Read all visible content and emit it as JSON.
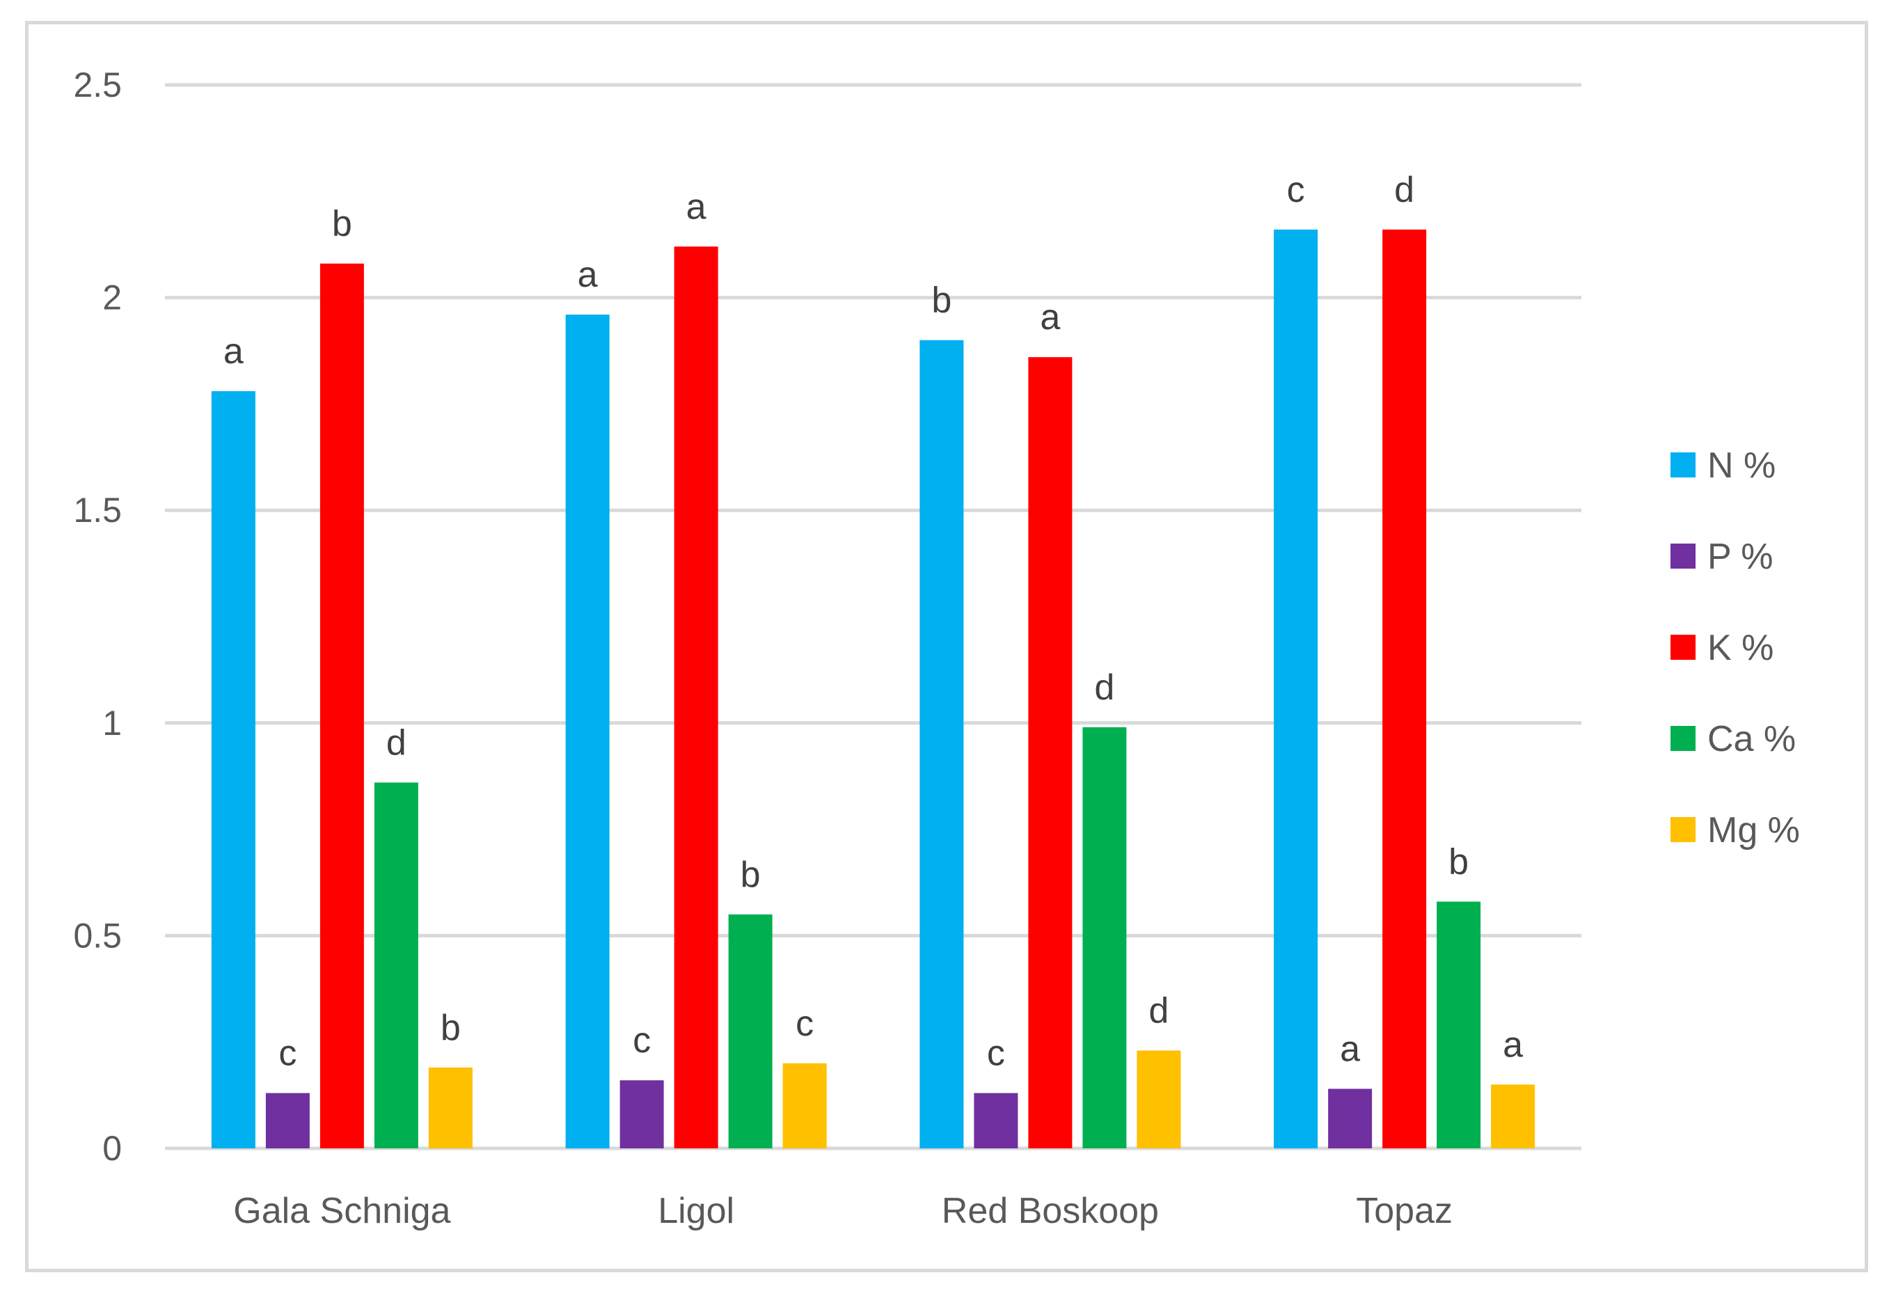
{
  "chart_data": {
    "type": "bar",
    "title": "",
    "xlabel": "",
    "ylabel": "",
    "ylim": [
      0,
      2.5
    ],
    "yticks": [
      0,
      0.5,
      1,
      1.5,
      2,
      2.5
    ],
    "ytick_labels": [
      "0",
      "0.5",
      "1",
      "1.5",
      "2",
      "2.5"
    ],
    "grid": true,
    "legend_position": "right",
    "categories": [
      "Gala Schniga",
      "Ligol",
      "Red Boskoop",
      "Topaz"
    ],
    "series": [
      {
        "name": "N %",
        "color": "#00b0f0",
        "values": [
          1.78,
          1.96,
          1.9,
          2.16
        ],
        "labels": [
          "a",
          "a",
          "b",
          "c"
        ]
      },
      {
        "name": "P %",
        "color": "#7030a0",
        "values": [
          0.13,
          0.16,
          0.13,
          0.14
        ],
        "labels": [
          "c",
          "c",
          "c",
          "a"
        ]
      },
      {
        "name": "K %",
        "color": "#ff0000",
        "values": [
          2.08,
          2.12,
          1.86,
          2.16
        ],
        "labels": [
          "b",
          "a",
          "a",
          "d"
        ]
      },
      {
        "name": "Ca %",
        "color": "#00b050",
        "values": [
          0.86,
          0.55,
          0.99,
          0.58
        ],
        "labels": [
          "d",
          "b",
          "d",
          "b"
        ]
      },
      {
        "name": "Mg %",
        "color": "#ffc000",
        "values": [
          0.19,
          0.2,
          0.23,
          0.15
        ],
        "labels": [
          "b",
          "c",
          "d",
          "a"
        ]
      }
    ]
  },
  "colors": {
    "gridline": "#d9d9d9",
    "axis_text": "#595959",
    "label_text": "#404040"
  }
}
